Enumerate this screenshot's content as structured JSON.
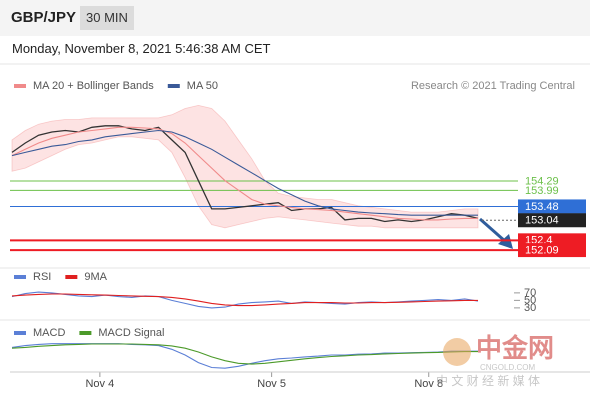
{
  "header": {
    "symbol": "GBP/JPY",
    "timeframe": "30 MIN",
    "timestamp": "Monday, November 8, 2021 5:46:38 AM CET",
    "credit": "Research © 2021 Trading Central"
  },
  "watermark": {
    "logo": "中金网",
    "site": "CNGOLD.COM",
    "slogan": "中 文 财 经 新 媒 体"
  },
  "chart_data": [
    {
      "type": "line",
      "x": [
        0,
        1,
        2,
        3,
        4,
        5,
        6,
        7,
        8,
        9,
        10,
        11,
        12,
        13,
        14,
        15,
        16,
        17,
        18,
        19,
        20,
        21,
        22,
        23,
        24,
        25,
        26,
        27,
        28,
        29,
        30,
        31,
        32,
        33,
        34,
        35
      ],
      "xlim": [
        0,
        35
      ],
      "xticks": [
        {
          "value": 6.6,
          "label": "Nov 4"
        },
        {
          "value": 19.5,
          "label": "Nov 5"
        },
        {
          "value": 31.3,
          "label": "Nov 8"
        }
      ],
      "ylim": [
        151.71,
        157.03
      ],
      "price": {
        "color": "#333333",
        "values": [
          155.2,
          155.5,
          155.75,
          155.85,
          155.9,
          155.85,
          156.0,
          156.05,
          156.05,
          155.95,
          155.9,
          156.0,
          155.6,
          155.2,
          154.3,
          153.4,
          153.4,
          153.45,
          153.5,
          153.55,
          153.6,
          153.35,
          153.4,
          153.4,
          153.45,
          153.05,
          153.1,
          153.1,
          153.0,
          153.05,
          153.0,
          153.05,
          153.15,
          153.25,
          153.2,
          153.1
        ]
      },
      "series": [
        {
          "name": "MA 20 + Bollinger Bands",
          "color": "#f08a8a",
          "band_color": "#fde3e3",
          "values": [
            155.1,
            155.3,
            155.5,
            155.65,
            155.75,
            155.85,
            155.9,
            155.95,
            156.0,
            156.0,
            155.98,
            155.95,
            155.8,
            155.5,
            155.1,
            154.7,
            154.3,
            154.0,
            153.7,
            153.55,
            153.5,
            153.45,
            153.4,
            153.38,
            153.35,
            153.3,
            153.25,
            153.2,
            153.15,
            153.1,
            153.08,
            153.05,
            153.05,
            153.08,
            153.1,
            153.1
          ],
          "upper": [
            155.6,
            155.9,
            156.1,
            156.2,
            156.25,
            156.25,
            156.3,
            156.3,
            156.3,
            156.3,
            156.3,
            156.3,
            156.4,
            156.6,
            156.7,
            156.6,
            156.2,
            155.6,
            155.0,
            154.3,
            153.9,
            153.8,
            153.75,
            153.7,
            153.7,
            153.6,
            153.5,
            153.45,
            153.4,
            153.35,
            153.3,
            153.3,
            153.3,
            153.35,
            153.4,
            153.4
          ],
          "lower": [
            154.6,
            154.7,
            154.9,
            155.1,
            155.3,
            155.45,
            155.5,
            155.6,
            155.7,
            155.7,
            155.65,
            155.6,
            155.2,
            154.4,
            153.5,
            152.9,
            152.8,
            152.9,
            153.0,
            153.1,
            153.15,
            153.1,
            153.05,
            153.0,
            152.95,
            152.9,
            152.85,
            152.85,
            152.8,
            152.8,
            152.8,
            152.8,
            152.8,
            152.8,
            152.8,
            152.8
          ]
        },
        {
          "name": "MA 50",
          "color": "#3a5a98",
          "values": [
            155.1,
            155.2,
            155.3,
            155.4,
            155.45,
            155.55,
            155.6,
            155.7,
            155.75,
            155.8,
            155.85,
            155.9,
            155.85,
            155.7,
            155.5,
            155.3,
            155.05,
            154.8,
            154.55,
            154.3,
            154.05,
            153.85,
            153.65,
            153.5,
            153.4,
            153.35,
            153.3,
            153.27,
            153.25,
            153.22,
            153.2,
            153.2,
            153.2,
            153.2,
            153.2,
            153.2
          ]
        }
      ],
      "levels": [
        {
          "value": 154.29,
          "color": "#6cc04a",
          "boxed": false
        },
        {
          "value": 153.99,
          "color": "#6cc04a",
          "boxed": false
        },
        {
          "value": 153.48,
          "color": "#2f6fd6",
          "boxed": true
        },
        {
          "value": 153.04,
          "color": "#222222",
          "boxed": true
        },
        {
          "value": 152.4,
          "color": "#ee1c24",
          "boxed": true
        },
        {
          "value": 152.09,
          "color": "#ee1c24",
          "boxed": true
        }
      ]
    },
    {
      "type": "line",
      "x": [
        0,
        1,
        2,
        3,
        4,
        5,
        6,
        7,
        8,
        9,
        10,
        11,
        12,
        13,
        14,
        15,
        16,
        17,
        18,
        19,
        20,
        21,
        22,
        23,
        24,
        25,
        26,
        27,
        28,
        29,
        30,
        31,
        32,
        33,
        34,
        35
      ],
      "xlim": [
        0,
        35
      ],
      "ylim": [
        11,
        91
      ],
      "yticks": [
        70,
        50,
        30
      ],
      "series": [
        {
          "name": "RSI",
          "color": "#5b7fd6",
          "values": [
            60,
            68,
            72,
            70,
            66,
            62,
            60,
            64,
            60,
            58,
            62,
            60,
            50,
            42,
            34,
            30,
            32,
            40,
            44,
            46,
            48,
            42,
            46,
            44,
            42,
            40,
            44,
            46,
            44,
            46,
            48,
            50,
            52,
            50,
            54,
            48
          ]
        },
        {
          "name": "9MA",
          "color": "#e02020",
          "values": [
            62,
            64,
            66,
            67,
            67,
            66,
            65,
            64,
            63,
            62,
            61,
            60,
            58,
            54,
            48,
            42,
            38,
            36,
            36,
            38,
            40,
            42,
            44,
            44,
            44,
            43,
            43,
            44,
            44,
            45,
            46,
            47,
            48,
            49,
            50,
            50
          ]
        }
      ]
    },
    {
      "type": "line",
      "x": [
        0,
        1,
        2,
        3,
        4,
        5,
        6,
        7,
        8,
        9,
        10,
        11,
        12,
        13,
        14,
        15,
        16,
        17,
        18,
        19,
        20,
        21,
        22,
        23,
        24,
        25,
        26,
        27,
        28,
        29,
        30,
        31,
        32,
        33,
        34,
        35
      ],
      "xlim": [
        0,
        35
      ],
      "ylim": [
        -0.45,
        0.45
      ],
      "series": [
        {
          "name": "MACD",
          "color": "#5b7fd6",
          "values": [
            0.2,
            0.25,
            0.28,
            0.3,
            0.3,
            0.3,
            0.3,
            0.3,
            0.3,
            0.28,
            0.27,
            0.25,
            0.15,
            0.0,
            -0.2,
            -0.33,
            -0.35,
            -0.3,
            -0.22,
            -0.15,
            -0.1,
            -0.08,
            -0.05,
            -0.03,
            0,
            0,
            0.02,
            0.03,
            0.05,
            0.05,
            0.06,
            0.07,
            0.08,
            0.1,
            0.1,
            0.1
          ]
        },
        {
          "name": "MACD Signal",
          "color": "#4c9a2a",
          "values": [
            0.18,
            0.2,
            0.23,
            0.25,
            0.27,
            0.28,
            0.29,
            0.29,
            0.29,
            0.29,
            0.28,
            0.27,
            0.24,
            0.18,
            0.08,
            -0.05,
            -0.15,
            -0.22,
            -0.24,
            -0.22,
            -0.18,
            -0.14,
            -0.1,
            -0.07,
            -0.04,
            -0.02,
            0,
            0.01,
            0.03,
            0.04,
            0.05,
            0.06,
            0.07,
            0.08,
            0.09,
            0.09
          ]
        }
      ]
    }
  ]
}
